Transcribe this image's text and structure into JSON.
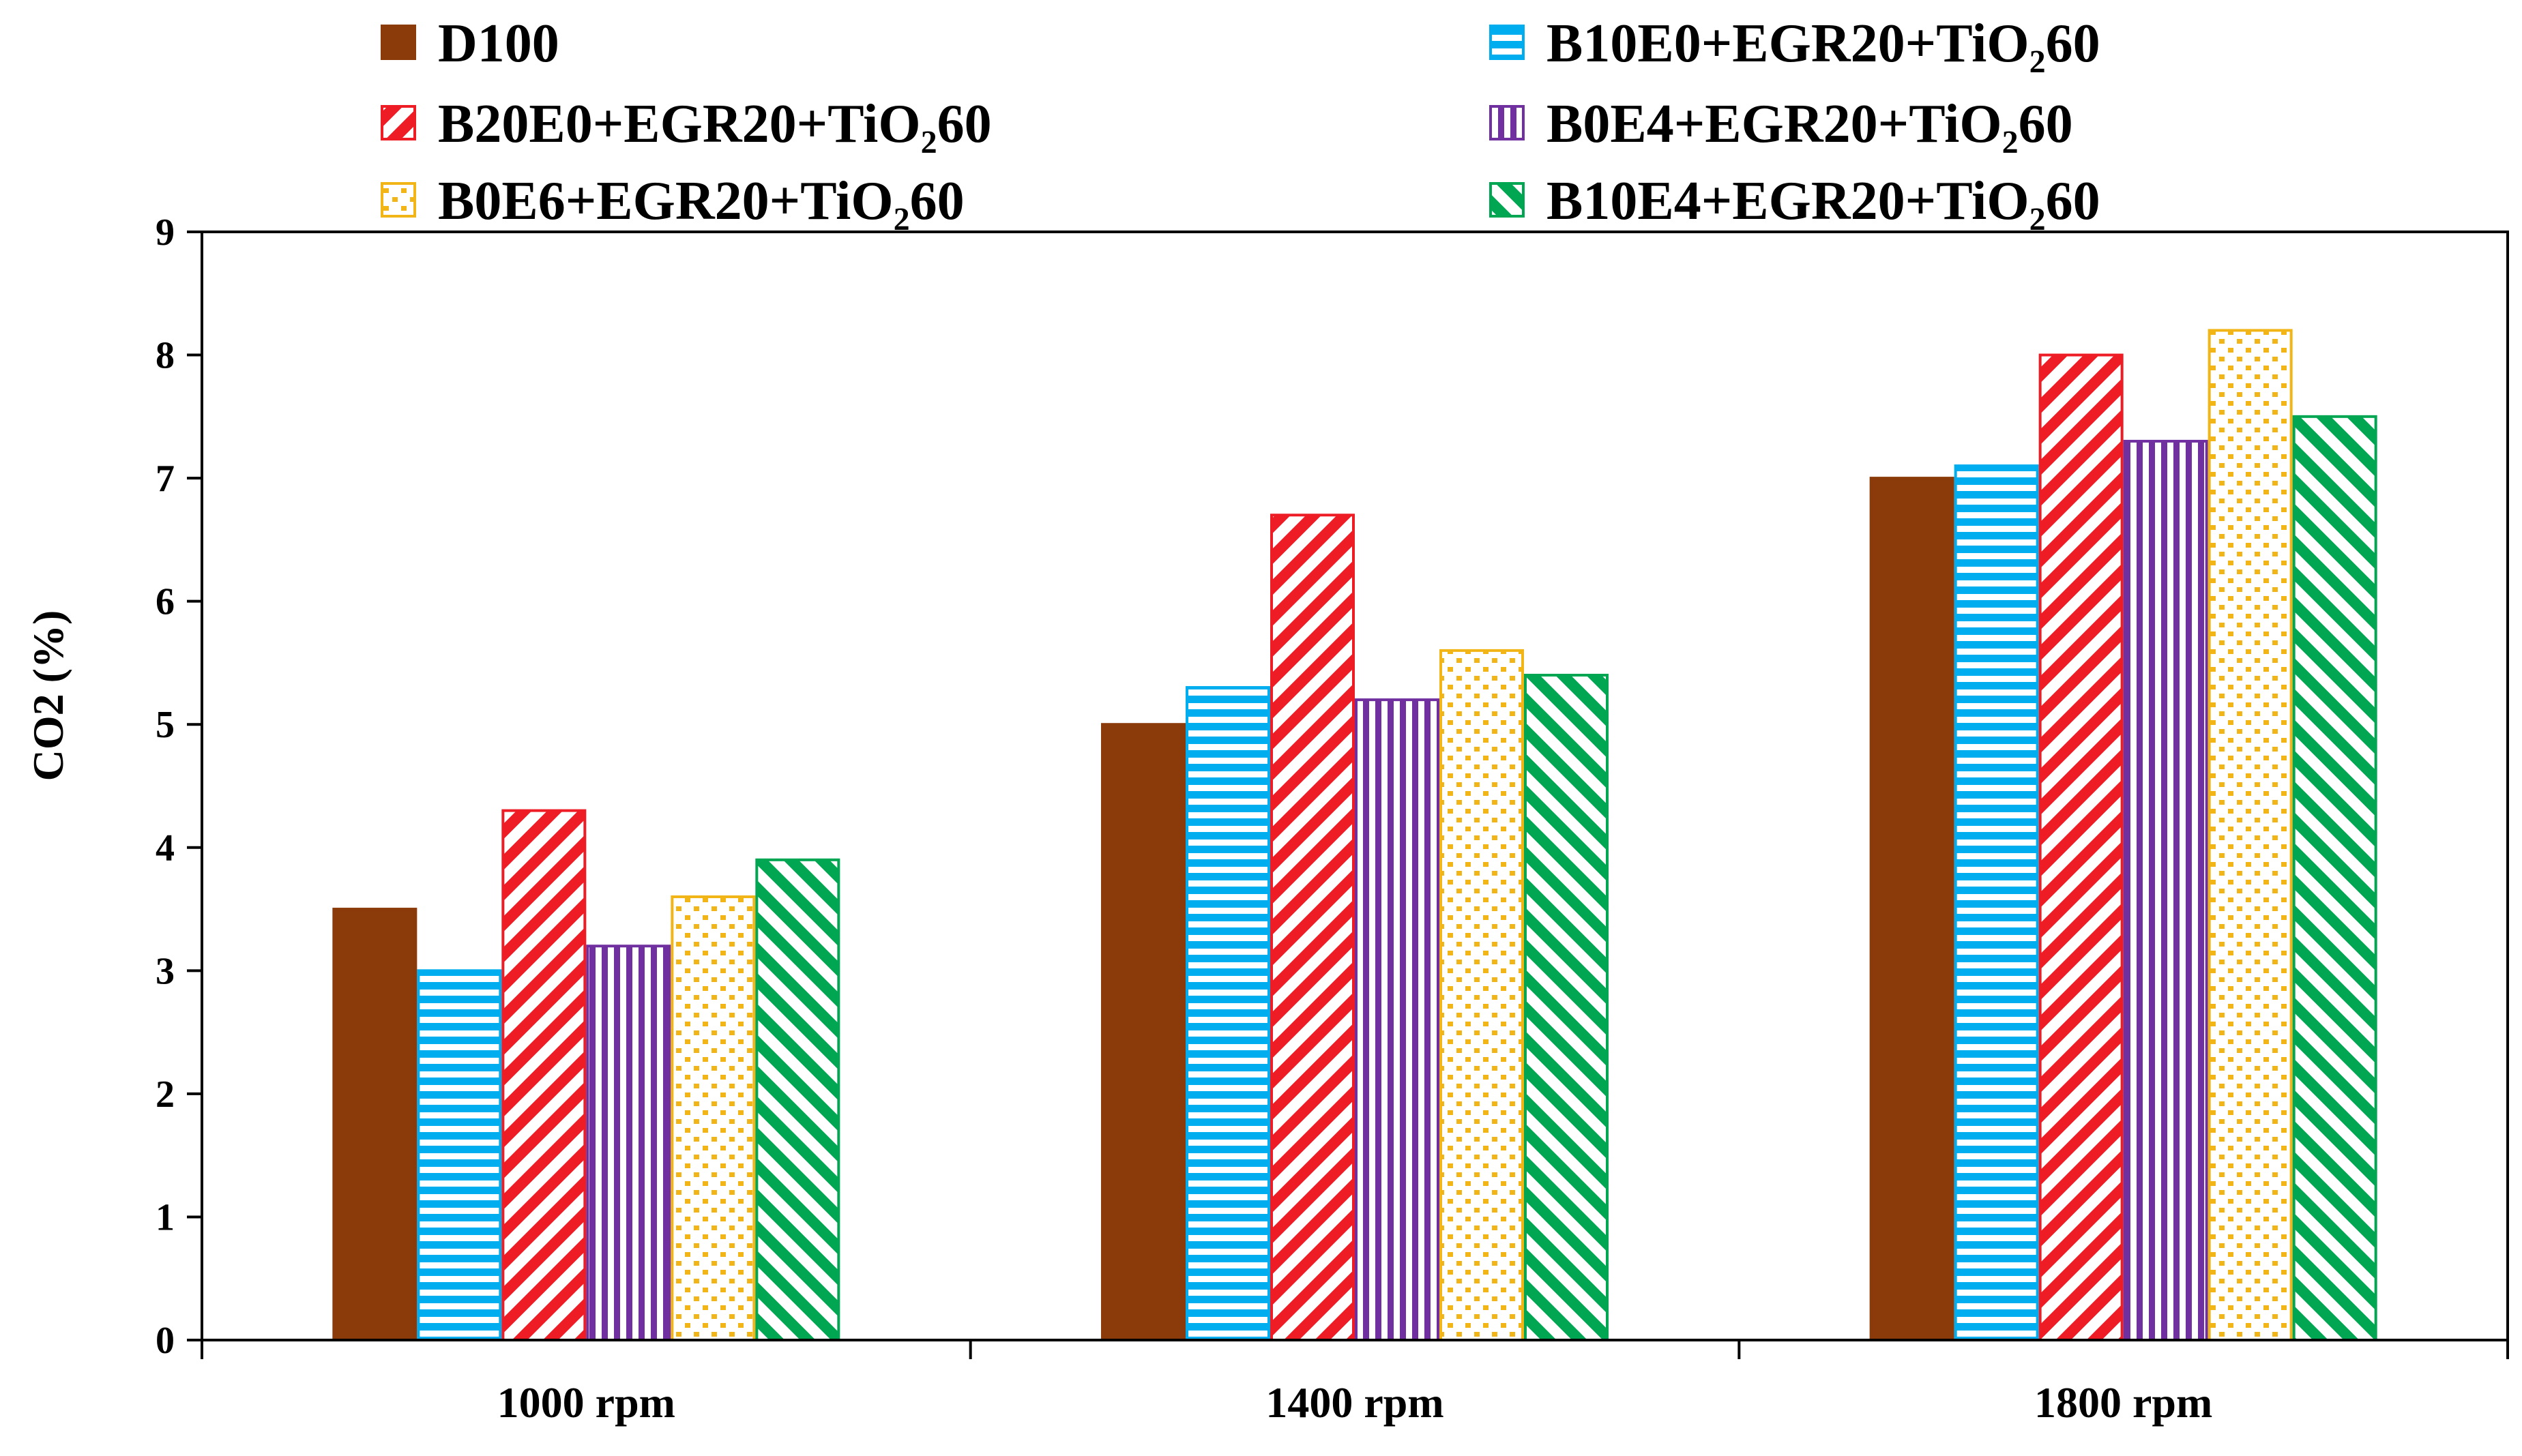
{
  "chart_data": {
    "type": "bar",
    "title": "",
    "xlabel": "",
    "ylabel": "CO2 (%)",
    "ylim": [
      0,
      9
    ],
    "yticks": [
      0,
      1,
      2,
      3,
      4,
      5,
      6,
      7,
      8,
      9
    ],
    "categories": [
      "1000 rpm",
      "1400 rpm",
      "1800 rpm"
    ],
    "legend_position": "top",
    "series": [
      {
        "name": "D100",
        "pattern": "solid",
        "color": "#8B3A0A",
        "values": [
          3.5,
          5.0,
          7.0
        ]
      },
      {
        "name": "B10E0+EGR20+TiO₂60",
        "pattern": "horizontal",
        "color": "#00AEEF",
        "values": [
          3.0,
          5.3,
          7.1
        ]
      },
      {
        "name": "B20E0+EGR20+TiO₂60",
        "pattern": "diagonal-up",
        "color": "#EE1C25",
        "values": [
          4.3,
          6.7,
          8.0
        ]
      },
      {
        "name": "B0E4+EGR20+TiO₂60",
        "pattern": "vertical",
        "color": "#7030A0",
        "values": [
          3.2,
          5.2,
          7.3
        ]
      },
      {
        "name": "B0E6+EGR20+TiO₂60",
        "pattern": "dots",
        "color": "#F2B517",
        "values": [
          3.6,
          5.6,
          8.2
        ]
      },
      {
        "name": "B10E4+EGR20+TiO₂60",
        "pattern": "diagonal-down",
        "color": "#00A651",
        "values": [
          3.9,
          5.4,
          7.5
        ]
      }
    ]
  }
}
